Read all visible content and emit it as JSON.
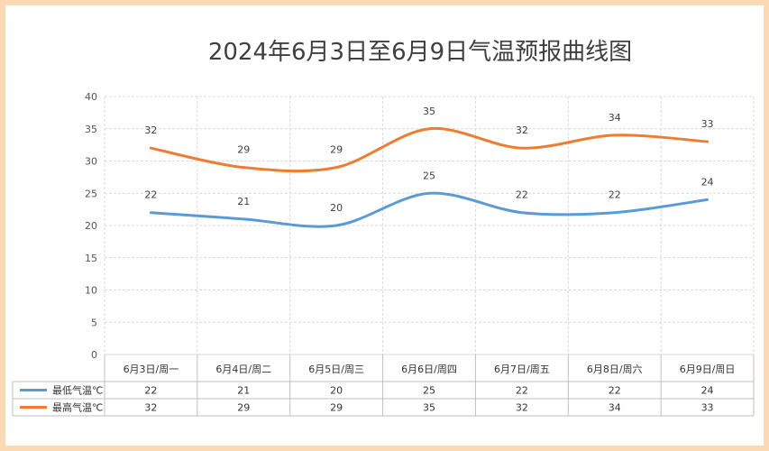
{
  "chart_data": {
    "type": "line",
    "title": "2024年6月3日至6月9日气温预报曲线图",
    "categories": [
      "6月3日/周一",
      "6月4日/周二",
      "6月5日/周三",
      "6月6日/周四",
      "6月7日/周五",
      "6月8日/周六",
      "6月9日/周日"
    ],
    "series": [
      {
        "name": "最低气温℃",
        "values": [
          22,
          21,
          20,
          25,
          22,
          22,
          24
        ],
        "color": "#5b9bd5"
      },
      {
        "name": "最高气温℃",
        "values": [
          32,
          29,
          29,
          35,
          32,
          34,
          33
        ],
        "color": "#ed7d31"
      }
    ],
    "ylim": [
      0,
      40
    ],
    "yticks": [
      "0",
      "5",
      "10",
      "15",
      "20",
      "25",
      "30",
      "35",
      "40"
    ],
    "grid": true,
    "smooth": true,
    "data_labels": true,
    "legend": "data-table"
  },
  "colors": {
    "page_border": "#fbd9b3",
    "grid": "#d9d9d9"
  }
}
